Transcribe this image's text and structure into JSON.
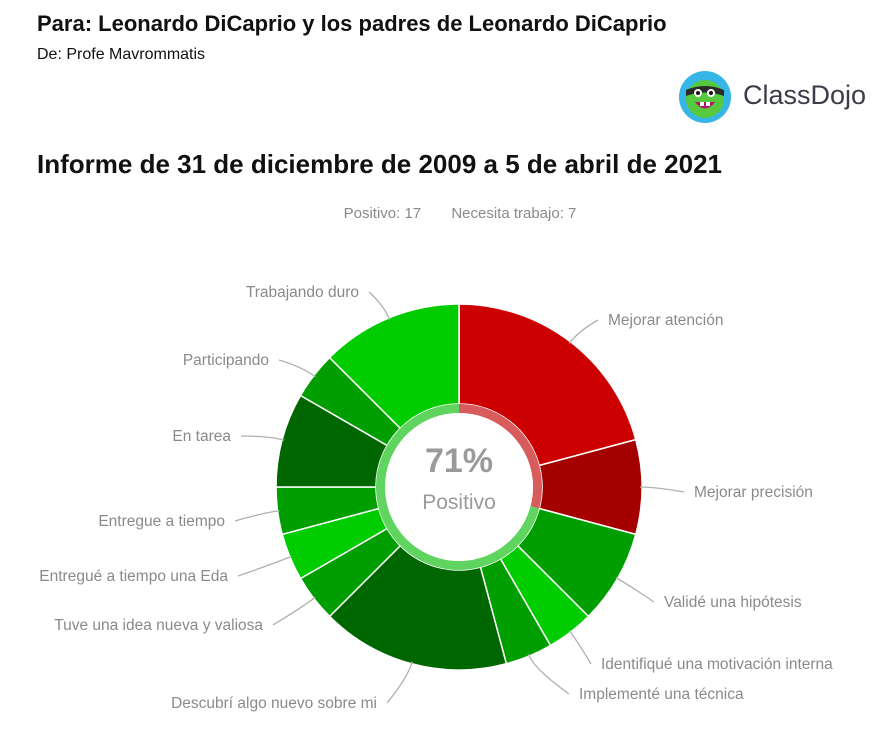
{
  "header": {
    "to": "Para: Leonardo DiCaprio y los padres de Leonardo DiCaprio",
    "from": "De: Profe Mavrommatis"
  },
  "brand": {
    "name": "ClassDojo",
    "logo_icon": "classdojo-monster-icon",
    "colors": {
      "logo_ring": "#36b6e6",
      "logo_face": "#56c93e",
      "text": "#3b3b4a"
    }
  },
  "report": {
    "title": "Informe de 31 de diciembre de 2009 a 5 de abril de 2021"
  },
  "summary": {
    "positive_label": "Positivo: 17",
    "needs_work_label": "Necesita trabajo: 7"
  },
  "chart_data": {
    "type": "pie",
    "style": "donut",
    "center_value": "71%",
    "center_label": "Positivo",
    "positive_fraction": 0.71,
    "slices": [
      {
        "label": "Mejorar atención",
        "value": 5,
        "color": "#cc0000"
      },
      {
        "label": "Mejorar precisión",
        "value": 2,
        "color": "#a50000"
      },
      {
        "label": "Validé una hipótesis",
        "value": 2,
        "color": "#009e00"
      },
      {
        "label": "Identifiqué una motivación interna",
        "value": 1,
        "color": "#00cc00"
      },
      {
        "label": "Implementé una técnica",
        "value": 1,
        "color": "#009e00"
      },
      {
        "label": "Descubrí algo nuevo sobre mi",
        "value": 4,
        "color": "#006600"
      },
      {
        "label": "Tuve una idea nueva y valiosa",
        "value": 1,
        "color": "#009e00"
      },
      {
        "label": "Entregué a tiempo una Eda",
        "value": 1,
        "color": "#00cc00"
      },
      {
        "label": "Entregue a tiempo",
        "value": 1,
        "color": "#009e00"
      },
      {
        "label": "En tarea",
        "value": 2,
        "color": "#006600"
      },
      {
        "label": "Participando",
        "value": 1,
        "color": "#009e00"
      },
      {
        "label": "Trabajando duro",
        "value": 3,
        "color": "#00cc00"
      }
    ],
    "inner_ring_colors": {
      "positive": "#5fd45f",
      "negative": "#d95c5c"
    },
    "label_color": "#8a8a8a",
    "leader_color": "#b0b0b0"
  }
}
